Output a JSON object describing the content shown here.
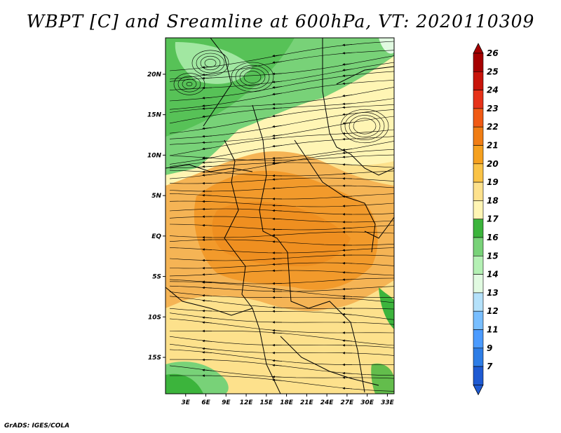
{
  "title": "WBPT [C] and Sreamline at 600hPa, VT: 2020110309",
  "footer": "GrADS: IGES/COLA",
  "map": {
    "lat_labels": [
      "20N",
      "15N",
      "10N",
      "5N",
      "EQ",
      "5S",
      "10S",
      "15S"
    ],
    "lon_labels": [
      "3E",
      "6E",
      "9E",
      "12E",
      "15E",
      "18E",
      "21E",
      "24E",
      "27E",
      "30E",
      "33E"
    ],
    "lat_range": [
      -19.5,
      24.5
    ],
    "lon_range": [
      0,
      34
    ]
  },
  "colorbar": {
    "labels": [
      "26",
      "25",
      "24",
      "23",
      "22",
      "21",
      "20",
      "19",
      "18",
      "17",
      "16",
      "15",
      "14",
      "13",
      "12",
      "11",
      "9",
      "7"
    ],
    "colors": [
      "#a50000",
      "#c8140a",
      "#e63219",
      "#f05a14",
      "#f07d14",
      "#f5a01e",
      "#fac346",
      "#fde18c",
      "#fff5b4",
      "#3cb43c",
      "#78d278",
      "#b4f0b4",
      "#e1fae1",
      "#b4e1fa",
      "#78beff",
      "#4b9bff",
      "#2d7de6",
      "#1e5ad2"
    ],
    "top_color": "#a50000",
    "bottom_color": "#1e5ad2"
  },
  "colors": {
    "orange_core": "#f29a2b",
    "orange_mid": "#f5b455",
    "yellow": "#fde18c",
    "pale_yellow": "#fff5b4",
    "green": "#3cb43c",
    "light_green": "#78d278",
    "pale_green": "#b4f0b4"
  }
}
